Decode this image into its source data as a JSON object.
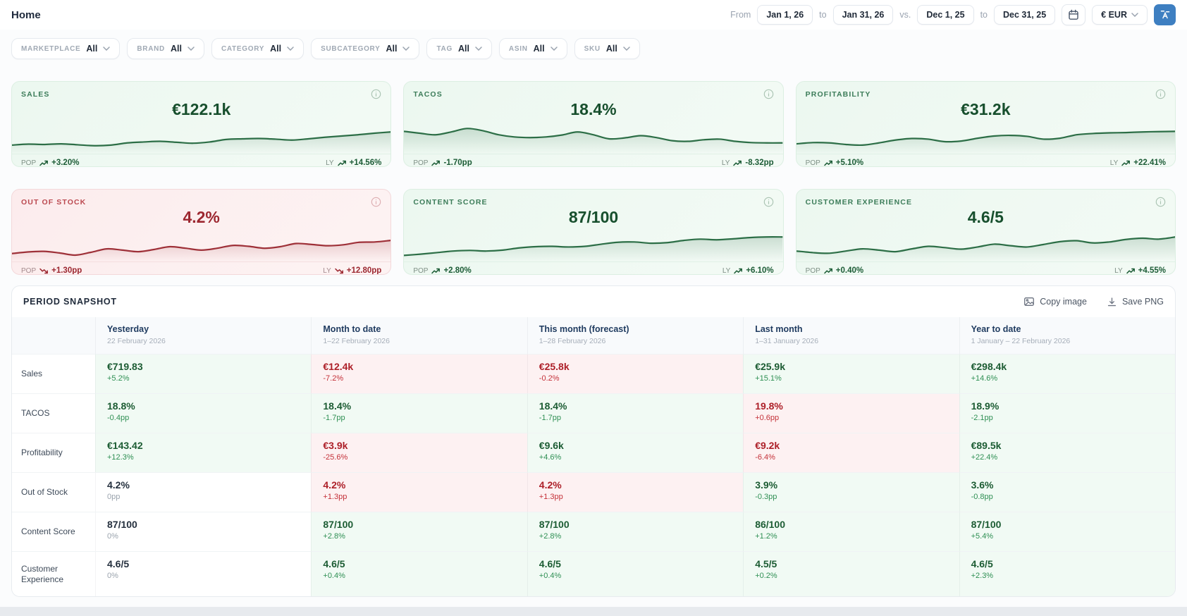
{
  "colors": {
    "green_line": "#2c6e46",
    "red_line": "#9e3038",
    "blue_button": "#3e7fc1",
    "green_card_bg": "#ecf8f0",
    "red_card_bg": "#fceced",
    "green_cell_bg": "#f1faf4",
    "red_cell_bg": "#fdf1f2"
  },
  "header": {
    "title": "Home",
    "from_label": "From",
    "to_label": "to",
    "vs_label": "vs.",
    "period_start": "Jan 1, 26",
    "period_end": "Jan 31, 26",
    "compare_start": "Dec 1, 25",
    "compare_end": "Dec 31, 25",
    "currency": "€ EUR"
  },
  "filters": [
    {
      "label": "MARKETPLACE",
      "value": "All"
    },
    {
      "label": "BRAND",
      "value": "All"
    },
    {
      "label": "CATEGORY",
      "value": "All"
    },
    {
      "label": "SUBCATEGORY",
      "value": "All"
    },
    {
      "label": "TAG",
      "value": "All"
    },
    {
      "label": "ASIN",
      "value": "All"
    },
    {
      "label": "SKU",
      "value": "All"
    }
  ],
  "kpi_cards": [
    {
      "label": "SALES",
      "value": "€122.1k",
      "pop_label": "POP",
      "pop": "+3.20%",
      "ly_label": "LY",
      "ly": "+14.56%",
      "tone": "green",
      "trend": "up",
      "spark": [
        22,
        25,
        24,
        26,
        23,
        20,
        22,
        29,
        32,
        34,
        31,
        28,
        32,
        40,
        42,
        43,
        41,
        38,
        42,
        47,
        51,
        55,
        60,
        64
      ]
    },
    {
      "label": "TACOS",
      "value": "18.4%",
      "pop_label": "POP",
      "pop": "-1.70pp",
      "ly_label": "LY",
      "ly": "-8.32pp",
      "tone": "green",
      "trend": "up",
      "spark": [
        66,
        60,
        55,
        64,
        75,
        68,
        55,
        48,
        46,
        48,
        54,
        64,
        55,
        42,
        45,
        52,
        46,
        36,
        34,
        39,
        41,
        34,
        30,
        29,
        29
      ]
    },
    {
      "label": "PROFITABILITY",
      "value": "€31.2k",
      "pop_label": "POP",
      "pop": "+5.10%",
      "ly_label": "LY",
      "ly": "+22.41%",
      "tone": "green",
      "trend": "up",
      "spark": [
        26,
        30,
        29,
        24,
        22,
        29,
        38,
        43,
        41,
        33,
        35,
        44,
        51,
        53,
        50,
        41,
        44,
        55,
        59,
        61,
        62,
        64,
        65,
        66
      ]
    },
    {
      "label": "OUT OF STOCK",
      "value": "4.2%",
      "pop_label": "POP",
      "pop": "+1.30pp",
      "ly_label": "LY",
      "ly": "+12.80pp",
      "tone": "red",
      "trend": "down",
      "spark": [
        20,
        25,
        27,
        22,
        15,
        24,
        35,
        31,
        26,
        33,
        42,
        37,
        31,
        37,
        46,
        43,
        37,
        42,
        52,
        49,
        45,
        48,
        56,
        57,
        62
      ]
    },
    {
      "label": "CONTENT SCORE",
      "value": "87/100",
      "pop_label": "POP",
      "pop": "+2.80%",
      "ly_label": "LY",
      "ly": "+6.10%",
      "tone": "green",
      "trend": "up",
      "spark": [
        14,
        18,
        23,
        28,
        30,
        28,
        31,
        38,
        42,
        43,
        41,
        43,
        50,
        56,
        57,
        53,
        55,
        62,
        66,
        64,
        67,
        71,
        73,
        73
      ]
    },
    {
      "label": "CUSTOMER EXPERIENCE",
      "value": "4.6/5",
      "pop_label": "POP",
      "pop": "+0.40%",
      "ly_label": "LY",
      "ly": "+4.55%",
      "tone": "green",
      "trend": "up",
      "spark": [
        28,
        23,
        21,
        28,
        35,
        31,
        26,
        35,
        43,
        39,
        34,
        41,
        50,
        45,
        41,
        49,
        58,
        61,
        54,
        57,
        65,
        69,
        66,
        73
      ]
    }
  ],
  "snapshot": {
    "title": "PERIOD SNAPSHOT",
    "copy_label": "Copy image",
    "save_label": "Save PNG",
    "columns": [
      {
        "label": "Yesterday",
        "sub": "22 February 2026"
      },
      {
        "label": "Month to date",
        "sub": "1–22 February 2026"
      },
      {
        "label": "This month (forecast)",
        "sub": "1–28 February 2026"
      },
      {
        "label": "Last month",
        "sub": "1–31 January 2026"
      },
      {
        "label": "Year to date",
        "sub": "1 January – 22 February 2026"
      }
    ],
    "rows": [
      {
        "label": "Sales",
        "cells": [
          {
            "value": "€719.83",
            "delta": "+5.2%",
            "tone": "green"
          },
          {
            "value": "€12.4k",
            "delta": "-7.2%",
            "tone": "red"
          },
          {
            "value": "€25.8k",
            "delta": "-0.2%",
            "tone": "red"
          },
          {
            "value": "€25.9k",
            "delta": "+15.1%",
            "tone": "green"
          },
          {
            "value": "€298.4k",
            "delta": "+14.6%",
            "tone": "green"
          }
        ]
      },
      {
        "label": "TACOS",
        "cells": [
          {
            "value": "18.8%",
            "delta": "-0.4pp",
            "tone": "green"
          },
          {
            "value": "18.4%",
            "delta": "-1.7pp",
            "tone": "green"
          },
          {
            "value": "18.4%",
            "delta": "-1.7pp",
            "tone": "green"
          },
          {
            "value": "19.8%",
            "delta": "+0.6pp",
            "tone": "red"
          },
          {
            "value": "18.9%",
            "delta": "-2.1pp",
            "tone": "green"
          }
        ]
      },
      {
        "label": "Profitability",
        "cells": [
          {
            "value": "€143.42",
            "delta": "+12.3%",
            "tone": "green"
          },
          {
            "value": "€3.9k",
            "delta": "-25.6%",
            "tone": "red"
          },
          {
            "value": "€9.6k",
            "delta": "+4.6%",
            "tone": "green"
          },
          {
            "value": "€9.2k",
            "delta": "-6.4%",
            "tone": "red"
          },
          {
            "value": "€89.5k",
            "delta": "+22.4%",
            "tone": "green"
          }
        ]
      },
      {
        "label": "Out of Stock",
        "cells": [
          {
            "value": "4.2%",
            "delta": "0pp",
            "tone": "neutral"
          },
          {
            "value": "4.2%",
            "delta": "+1.3pp",
            "tone": "red"
          },
          {
            "value": "4.2%",
            "delta": "+1.3pp",
            "tone": "red"
          },
          {
            "value": "3.9%",
            "delta": "-0.3pp",
            "tone": "green"
          },
          {
            "value": "3.6%",
            "delta": "-0.8pp",
            "tone": "green"
          }
        ]
      },
      {
        "label": "Content Score",
        "cells": [
          {
            "value": "87/100",
            "delta": "0%",
            "tone": "neutral"
          },
          {
            "value": "87/100",
            "delta": "+2.8%",
            "tone": "green"
          },
          {
            "value": "87/100",
            "delta": "+2.8%",
            "tone": "green"
          },
          {
            "value": "86/100",
            "delta": "+1.2%",
            "tone": "green"
          },
          {
            "value": "87/100",
            "delta": "+5.4%",
            "tone": "green"
          }
        ]
      },
      {
        "label": "Customer Experience",
        "cells": [
          {
            "value": "4.6/5",
            "delta": "0%",
            "tone": "neutral"
          },
          {
            "value": "4.6/5",
            "delta": "+0.4%",
            "tone": "green"
          },
          {
            "value": "4.6/5",
            "delta": "+0.4%",
            "tone": "green"
          },
          {
            "value": "4.5/5",
            "delta": "+0.2%",
            "tone": "green"
          },
          {
            "value": "4.6/5",
            "delta": "+2.3%",
            "tone": "green"
          }
        ]
      }
    ]
  }
}
